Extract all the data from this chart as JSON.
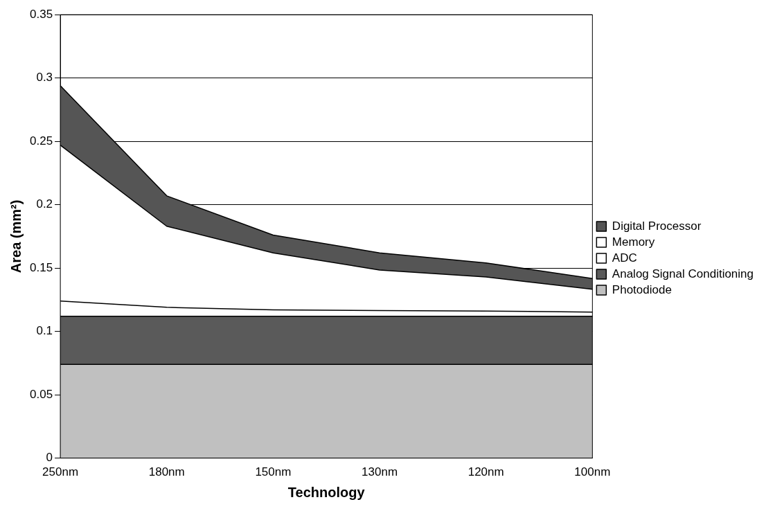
{
  "chart_data": {
    "type": "area",
    "stacked": true,
    "xlabel": "Technology",
    "ylabel": "Area (mm²)",
    "categories": [
      "250nm",
      "180nm",
      "150nm",
      "130nm",
      "120nm",
      "100nm"
    ],
    "series": [
      {
        "name": "Photodiode",
        "color": "#c0c0c0",
        "values": [
          0.074,
          0.074,
          0.074,
          0.074,
          0.074,
          0.074
        ]
      },
      {
        "name": "Analog Signal Conditioning",
        "color": "#5a5a5a",
        "values": [
          0.038,
          0.038,
          0.038,
          0.038,
          0.038,
          0.038
        ]
      },
      {
        "name": "ADC",
        "color": "#ffffff",
        "values": [
          0.012,
          0.007,
          0.005,
          0.0045,
          0.004,
          0.0033
        ]
      },
      {
        "name": "Memory",
        "color": "#ffffff",
        "values": [
          0.123,
          0.064,
          0.045,
          0.032,
          0.027,
          0.018
        ]
      },
      {
        "name": "Digital Processor",
        "color": "#555555",
        "values": [
          0.047,
          0.024,
          0.014,
          0.0135,
          0.011,
          0.0085
        ]
      }
    ],
    "ylim": [
      0,
      0.35
    ],
    "yticks": [
      0,
      0.05,
      0.1,
      0.15,
      0.2,
      0.25,
      0.3,
      0.35
    ],
    "grid": "y",
    "legend": "right"
  }
}
